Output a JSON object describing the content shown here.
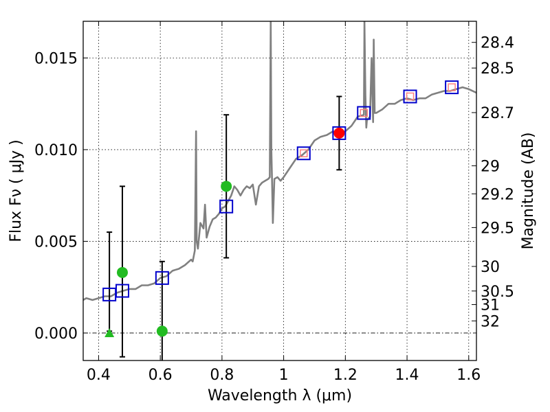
{
  "chart_data": {
    "type": "scatter",
    "title": "",
    "xlabel": "Wavelength  λ (μm)",
    "ylabel": "Flux  Fν  ( μJy )",
    "y2label": "Magnitude (AB)",
    "xlim": [
      0.35,
      1.625
    ],
    "ylim": [
      -0.0015,
      0.017
    ],
    "grid": true,
    "xticks": [
      {
        "value": 0.4,
        "label": "0.4"
      },
      {
        "value": 0.6,
        "label": "0.6"
      },
      {
        "value": 0.8,
        "label": "0.8"
      },
      {
        "value": 1.0,
        "label": "1"
      },
      {
        "value": 1.2,
        "label": "1.2"
      },
      {
        "value": 1.4,
        "label": "1.4"
      },
      {
        "value": 1.6,
        "label": "1.6"
      }
    ],
    "yticks": [
      {
        "value": 0.0,
        "label": "0.000"
      },
      {
        "value": 0.005,
        "label": "0.005"
      },
      {
        "value": 0.01,
        "label": "0.010"
      },
      {
        "value": 0.015,
        "label": "0.015"
      }
    ],
    "y2ticks": [
      {
        "flux": 0.01585,
        "label": "28.4"
      },
      {
        "flux": 0.01445,
        "label": "28.5"
      },
      {
        "flux": 0.01202,
        "label": "28.7"
      },
      {
        "flux": 0.00912,
        "label": "29"
      },
      {
        "flux": 0.00759,
        "label": "29.2"
      },
      {
        "flux": 0.00575,
        "label": "29.5"
      },
      {
        "flux": 0.00363,
        "label": "30"
      },
      {
        "flux": 0.00229,
        "label": "30.5"
      },
      {
        "flux": 0.00155,
        "label": "31"
      },
      {
        "flux": 0.00066,
        "label": "32"
      }
    ],
    "colors": {
      "spectrum": "#808080",
      "model": "#0000cc",
      "observed_bright": "#ff0000",
      "observed_faint": "#22bb22",
      "inner_square": "#ff8080",
      "errorbar": "#000000"
    },
    "series": [
      {
        "name": "model spectrum",
        "style": "line",
        "x": [
          0.35,
          0.36,
          0.38,
          0.4,
          0.42,
          0.44,
          0.46,
          0.48,
          0.5,
          0.52,
          0.54,
          0.56,
          0.58,
          0.6,
          0.62,
          0.64,
          0.66,
          0.68,
          0.7,
          0.705,
          0.712,
          0.716,
          0.718,
          0.722,
          0.73,
          0.74,
          0.745,
          0.75,
          0.76,
          0.77,
          0.78,
          0.79,
          0.8,
          0.81,
          0.82,
          0.83,
          0.84,
          0.85,
          0.86,
          0.87,
          0.88,
          0.89,
          0.9,
          0.91,
          0.92,
          0.93,
          0.94,
          0.95,
          0.955,
          0.958,
          0.96,
          0.962,
          0.965,
          0.97,
          0.98,
          0.99,
          1.0,
          1.02,
          1.04,
          1.06,
          1.08,
          1.1,
          1.12,
          1.14,
          1.16,
          1.18,
          1.2,
          1.22,
          1.24,
          1.26,
          1.262,
          1.265,
          1.268,
          1.27,
          1.28,
          1.285,
          1.29,
          1.292,
          1.295,
          1.3,
          1.32,
          1.34,
          1.36,
          1.38,
          1.4,
          1.42,
          1.44,
          1.46,
          1.48,
          1.5,
          1.52,
          1.54,
          1.56,
          1.58,
          1.6,
          1.625
        ],
        "y": [
          0.0018,
          0.0019,
          0.0018,
          0.0019,
          0.002,
          0.002,
          0.0022,
          0.0023,
          0.0024,
          0.0024,
          0.0026,
          0.0026,
          0.0027,
          0.003,
          0.0031,
          0.0034,
          0.0035,
          0.0037,
          0.004,
          0.0039,
          0.0045,
          0.011,
          0.005,
          0.0046,
          0.006,
          0.0057,
          0.007,
          0.0052,
          0.0058,
          0.0062,
          0.0063,
          0.0065,
          0.0068,
          0.0069,
          0.0072,
          0.0075,
          0.008,
          0.0078,
          0.0075,
          0.0078,
          0.008,
          0.0079,
          0.0081,
          0.007,
          0.008,
          0.0082,
          0.0083,
          0.0084,
          0.0085,
          0.017,
          0.01,
          0.0085,
          0.006,
          0.0084,
          0.0085,
          0.0083,
          0.0085,
          0.009,
          0.0095,
          0.0097,
          0.01,
          0.0105,
          0.0107,
          0.0108,
          0.011,
          0.0109,
          0.011,
          0.0113,
          0.0118,
          0.0119,
          0.017,
          0.013,
          0.0112,
          0.0116,
          0.0118,
          0.015,
          0.0115,
          0.016,
          0.012,
          0.012,
          0.0122,
          0.0125,
          0.0125,
          0.0127,
          0.0128,
          0.0127,
          0.0128,
          0.0128,
          0.013,
          0.0131,
          0.0132,
          0.0132,
          0.0133,
          0.0134,
          0.0133,
          0.0131
        ]
      },
      {
        "name": "model photometry",
        "style": "open-square",
        "x": [
          0.435,
          0.477,
          0.606,
          0.814,
          1.065,
          1.18,
          1.26,
          1.41,
          1.545
        ],
        "y": [
          0.0021,
          0.0023,
          0.003,
          0.0069,
          0.0098,
          0.0109,
          0.012,
          0.0129,
          0.0134
        ]
      },
      {
        "name": "observed photometry",
        "style": "filled-circle",
        "x": [
          0.477,
          0.606,
          0.814,
          1.18
        ],
        "y": [
          0.0033,
          0.0001,
          0.008,
          0.0109
        ],
        "color_key": [
          "observed_faint",
          "observed_faint",
          "observed_faint",
          "observed_bright"
        ]
      },
      {
        "name": "observed upper limit",
        "style": "triangle",
        "x": [
          0.435
        ],
        "y": [
          0.0
        ]
      },
      {
        "name": "inner model squares",
        "style": "inner-square",
        "x": [
          1.065,
          1.26,
          1.41,
          1.545
        ],
        "y": [
          0.0098,
          0.012,
          0.0129,
          0.0134
        ]
      }
    ],
    "errorbars": [
      {
        "x": 0.435,
        "ylow": 0.0001,
        "yhigh": 0.0055
      },
      {
        "x": 0.477,
        "ylow": -0.0013,
        "yhigh": 0.008
      },
      {
        "x": 0.606,
        "ylow": -0.002,
        "yhigh": 0.0039
      },
      {
        "x": 0.814,
        "ylow": 0.0041,
        "yhigh": 0.0119
      },
      {
        "x": 1.18,
        "ylow": 0.0089,
        "yhigh": 0.0129
      }
    ]
  }
}
